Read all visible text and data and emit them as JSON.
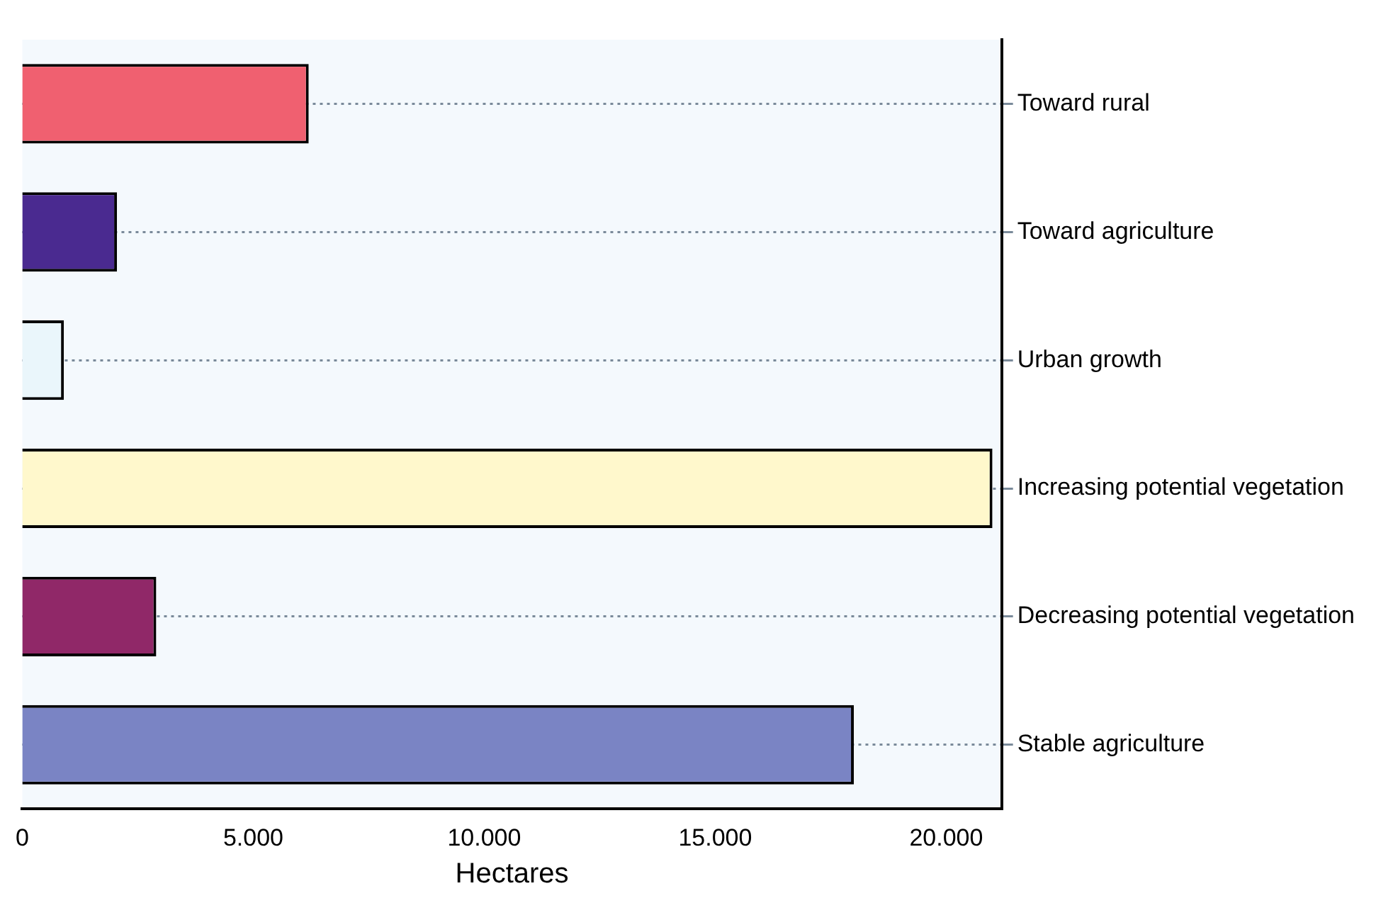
{
  "chart_data": {
    "type": "bar",
    "orientation": "horizontal",
    "xlabel": "Hectares",
    "categories": [
      "Toward rural",
      "Toward agriculture",
      "Urban growth",
      "Increasing potential vegetation",
      "Decreasing potential vegetation",
      "Stable agriculture"
    ],
    "values": [
      6200,
      2050,
      900,
      21000,
      2900,
      18000
    ],
    "colors": [
      "#f06070",
      "#4a2a90",
      "#eaf6fb",
      "#fff8cc",
      "#902868",
      "#7a84c4"
    ],
    "xlim": [
      0,
      21200
    ],
    "xticks": [
      0,
      {
        "value": 5000,
        "label": "5.000"
      },
      {
        "value": 10000,
        "label": "10.000"
      },
      {
        "value": 15000,
        "label": "15.000"
      },
      {
        "value": 20000,
        "label": "20.000"
      }
    ],
    "grid": "y"
  }
}
